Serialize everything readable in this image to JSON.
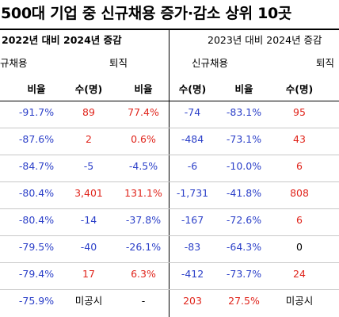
{
  "title": "500대 기업 중 신규채용 증가·감소 상위 10곳",
  "header": {
    "left_group": "2022년 대비 2024년 증감",
    "right_group": "2023년 대비 2024년 증감",
    "left_new_hire": "규채용",
    "left_resign": "퇴직",
    "right_new_hire": "신규채용",
    "right_resign": "퇴직",
    "col_ratio_1": "비율",
    "col_count_1": "수(명)",
    "col_ratio_2": "비율",
    "col_count_2": "수(명)",
    "col_ratio_3": "비율",
    "col_count_3": "수(명)"
  },
  "colors": {
    "blue": "#2b3fc8",
    "red": "#e0241b",
    "black": "#000000"
  },
  "rows": [
    {
      "c1": {
        "v": "-91.7%",
        "c": "blue"
      },
      "c2": {
        "v": "89",
        "c": "red"
      },
      "c3": {
        "v": "77.4%",
        "c": "red"
      },
      "c4": {
        "v": "-74",
        "c": "blue"
      },
      "c5": {
        "v": "-83.1%",
        "c": "blue"
      },
      "c6": {
        "v": "95",
        "c": "red"
      }
    },
    {
      "c1": {
        "v": "-87.6%",
        "c": "blue"
      },
      "c2": {
        "v": "2",
        "c": "red"
      },
      "c3": {
        "v": "0.6%",
        "c": "red"
      },
      "c4": {
        "v": "-484",
        "c": "blue"
      },
      "c5": {
        "v": "-73.1%",
        "c": "blue"
      },
      "c6": {
        "v": "43",
        "c": "red"
      }
    },
    {
      "c1": {
        "v": "-84.7%",
        "c": "blue"
      },
      "c2": {
        "v": "-5",
        "c": "blue"
      },
      "c3": {
        "v": "-4.5%",
        "c": "blue"
      },
      "c4": {
        "v": "-6",
        "c": "blue"
      },
      "c5": {
        "v": "-10.0%",
        "c": "blue"
      },
      "c6": {
        "v": "6",
        "c": "red"
      }
    },
    {
      "c1": {
        "v": "-80.4%",
        "c": "blue"
      },
      "c2": {
        "v": "3,401",
        "c": "red"
      },
      "c3": {
        "v": "131.1%",
        "c": "red"
      },
      "c4": {
        "v": "-1,731",
        "c": "blue"
      },
      "c5": {
        "v": "-41.8%",
        "c": "blue"
      },
      "c6": {
        "v": "808",
        "c": "red"
      }
    },
    {
      "c1": {
        "v": "-80.4%",
        "c": "blue"
      },
      "c2": {
        "v": "-14",
        "c": "blue"
      },
      "c3": {
        "v": "-37.8%",
        "c": "blue"
      },
      "c4": {
        "v": "-167",
        "c": "blue"
      },
      "c5": {
        "v": "-72.6%",
        "c": "blue"
      },
      "c6": {
        "v": "6",
        "c": "red"
      }
    },
    {
      "c1": {
        "v": "-79.5%",
        "c": "blue"
      },
      "c2": {
        "v": "-40",
        "c": "blue"
      },
      "c3": {
        "v": "-26.1%",
        "c": "blue"
      },
      "c4": {
        "v": "-83",
        "c": "blue"
      },
      "c5": {
        "v": "-64.3%",
        "c": "blue"
      },
      "c6": {
        "v": "0",
        "c": "black"
      }
    },
    {
      "c1": {
        "v": "-79.4%",
        "c": "blue"
      },
      "c2": {
        "v": "17",
        "c": "red"
      },
      "c3": {
        "v": "6.3%",
        "c": "red"
      },
      "c4": {
        "v": "-412",
        "c": "blue"
      },
      "c5": {
        "v": "-73.7%",
        "c": "blue"
      },
      "c6": {
        "v": "24",
        "c": "red"
      }
    },
    {
      "c1": {
        "v": "-75.9%",
        "c": "blue"
      },
      "c2": {
        "v": "미공시",
        "c": "black"
      },
      "c3": {
        "v": "-",
        "c": "black"
      },
      "c4": {
        "v": "203",
        "c": "red"
      },
      "c5": {
        "v": "27.5%",
        "c": "red"
      },
      "c6": {
        "v": "미공시",
        "c": "black"
      }
    }
  ]
}
